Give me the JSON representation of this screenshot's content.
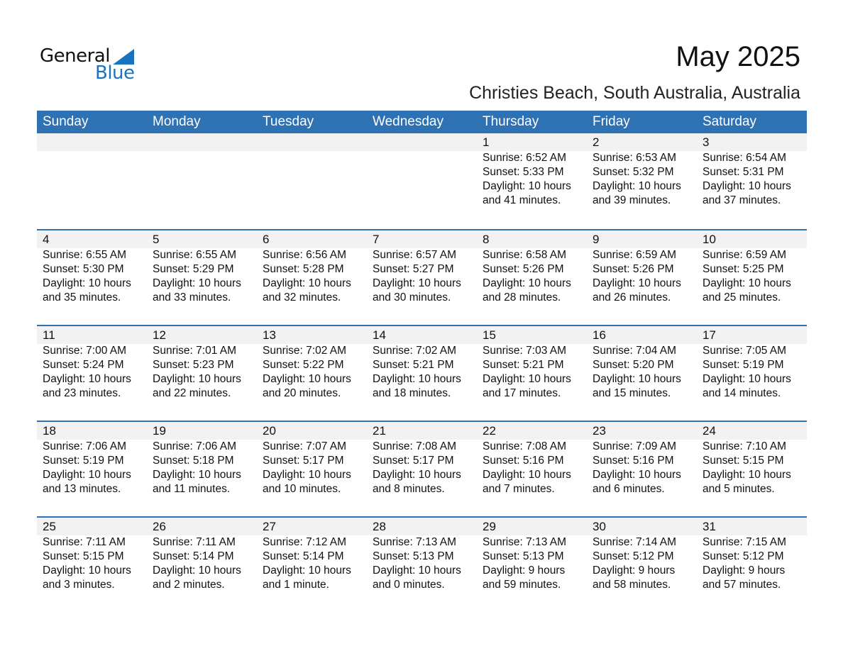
{
  "logo": {
    "text1": "General",
    "text2": "Blue"
  },
  "title": "May 2025",
  "location": "Christies Beach, South Australia, Australia",
  "colors": {
    "header": "#2e72b4",
    "band": "#f2f2f2",
    "logo_blue": "#1a73c0"
  },
  "weekdays": [
    "Sunday",
    "Monday",
    "Tuesday",
    "Wednesday",
    "Thursday",
    "Friday",
    "Saturday"
  ],
  "first_weekday": 4,
  "days": [
    {
      "day": "1",
      "sunrise": "Sunrise: 6:52 AM",
      "sunset": "Sunset: 5:33 PM",
      "daylight": "Daylight: 10 hours",
      "minutes": "and 41 minutes."
    },
    {
      "day": "2",
      "sunrise": "Sunrise: 6:53 AM",
      "sunset": "Sunset: 5:32 PM",
      "daylight": "Daylight: 10 hours",
      "minutes": "and 39 minutes."
    },
    {
      "day": "3",
      "sunrise": "Sunrise: 6:54 AM",
      "sunset": "Sunset: 5:31 PM",
      "daylight": "Daylight: 10 hours",
      "minutes": "and 37 minutes."
    },
    {
      "day": "4",
      "sunrise": "Sunrise: 6:55 AM",
      "sunset": "Sunset: 5:30 PM",
      "daylight": "Daylight: 10 hours",
      "minutes": "and 35 minutes."
    },
    {
      "day": "5",
      "sunrise": "Sunrise: 6:55 AM",
      "sunset": "Sunset: 5:29 PM",
      "daylight": "Daylight: 10 hours",
      "minutes": "and 33 minutes."
    },
    {
      "day": "6",
      "sunrise": "Sunrise: 6:56 AM",
      "sunset": "Sunset: 5:28 PM",
      "daylight": "Daylight: 10 hours",
      "minutes": "and 32 minutes."
    },
    {
      "day": "7",
      "sunrise": "Sunrise: 6:57 AM",
      "sunset": "Sunset: 5:27 PM",
      "daylight": "Daylight: 10 hours",
      "minutes": "and 30 minutes."
    },
    {
      "day": "8",
      "sunrise": "Sunrise: 6:58 AM",
      "sunset": "Sunset: 5:26 PM",
      "daylight": "Daylight: 10 hours",
      "minutes": "and 28 minutes."
    },
    {
      "day": "9",
      "sunrise": "Sunrise: 6:59 AM",
      "sunset": "Sunset: 5:26 PM",
      "daylight": "Daylight: 10 hours",
      "minutes": "and 26 minutes."
    },
    {
      "day": "10",
      "sunrise": "Sunrise: 6:59 AM",
      "sunset": "Sunset: 5:25 PM",
      "daylight": "Daylight: 10 hours",
      "minutes": "and 25 minutes."
    },
    {
      "day": "11",
      "sunrise": "Sunrise: 7:00 AM",
      "sunset": "Sunset: 5:24 PM",
      "daylight": "Daylight: 10 hours",
      "minutes": "and 23 minutes."
    },
    {
      "day": "12",
      "sunrise": "Sunrise: 7:01 AM",
      "sunset": "Sunset: 5:23 PM",
      "daylight": "Daylight: 10 hours",
      "minutes": "and 22 minutes."
    },
    {
      "day": "13",
      "sunrise": "Sunrise: 7:02 AM",
      "sunset": "Sunset: 5:22 PM",
      "daylight": "Daylight: 10 hours",
      "minutes": "and 20 minutes."
    },
    {
      "day": "14",
      "sunrise": "Sunrise: 7:02 AM",
      "sunset": "Sunset: 5:21 PM",
      "daylight": "Daylight: 10 hours",
      "minutes": "and 18 minutes."
    },
    {
      "day": "15",
      "sunrise": "Sunrise: 7:03 AM",
      "sunset": "Sunset: 5:21 PM",
      "daylight": "Daylight: 10 hours",
      "minutes": "and 17 minutes."
    },
    {
      "day": "16",
      "sunrise": "Sunrise: 7:04 AM",
      "sunset": "Sunset: 5:20 PM",
      "daylight": "Daylight: 10 hours",
      "minutes": "and 15 minutes."
    },
    {
      "day": "17",
      "sunrise": "Sunrise: 7:05 AM",
      "sunset": "Sunset: 5:19 PM",
      "daylight": "Daylight: 10 hours",
      "minutes": "and 14 minutes."
    },
    {
      "day": "18",
      "sunrise": "Sunrise: 7:06 AM",
      "sunset": "Sunset: 5:19 PM",
      "daylight": "Daylight: 10 hours",
      "minutes": "and 13 minutes."
    },
    {
      "day": "19",
      "sunrise": "Sunrise: 7:06 AM",
      "sunset": "Sunset: 5:18 PM",
      "daylight": "Daylight: 10 hours",
      "minutes": "and 11 minutes."
    },
    {
      "day": "20",
      "sunrise": "Sunrise: 7:07 AM",
      "sunset": "Sunset: 5:17 PM",
      "daylight": "Daylight: 10 hours",
      "minutes": "and 10 minutes."
    },
    {
      "day": "21",
      "sunrise": "Sunrise: 7:08 AM",
      "sunset": "Sunset: 5:17 PM",
      "daylight": "Daylight: 10 hours",
      "minutes": "and 8 minutes."
    },
    {
      "day": "22",
      "sunrise": "Sunrise: 7:08 AM",
      "sunset": "Sunset: 5:16 PM",
      "daylight": "Daylight: 10 hours",
      "minutes": "and 7 minutes."
    },
    {
      "day": "23",
      "sunrise": "Sunrise: 7:09 AM",
      "sunset": "Sunset: 5:16 PM",
      "daylight": "Daylight: 10 hours",
      "minutes": "and 6 minutes."
    },
    {
      "day": "24",
      "sunrise": "Sunrise: 7:10 AM",
      "sunset": "Sunset: 5:15 PM",
      "daylight": "Daylight: 10 hours",
      "minutes": "and 5 minutes."
    },
    {
      "day": "25",
      "sunrise": "Sunrise: 7:11 AM",
      "sunset": "Sunset: 5:15 PM",
      "daylight": "Daylight: 10 hours",
      "minutes": "and 3 minutes."
    },
    {
      "day": "26",
      "sunrise": "Sunrise: 7:11 AM",
      "sunset": "Sunset: 5:14 PM",
      "daylight": "Daylight: 10 hours",
      "minutes": "and 2 minutes."
    },
    {
      "day": "27",
      "sunrise": "Sunrise: 7:12 AM",
      "sunset": "Sunset: 5:14 PM",
      "daylight": "Daylight: 10 hours",
      "minutes": "and 1 minute."
    },
    {
      "day": "28",
      "sunrise": "Sunrise: 7:13 AM",
      "sunset": "Sunset: 5:13 PM",
      "daylight": "Daylight: 10 hours",
      "minutes": "and 0 minutes."
    },
    {
      "day": "29",
      "sunrise": "Sunrise: 7:13 AM",
      "sunset": "Sunset: 5:13 PM",
      "daylight": "Daylight: 9 hours",
      "minutes": "and 59 minutes."
    },
    {
      "day": "30",
      "sunrise": "Sunrise: 7:14 AM",
      "sunset": "Sunset: 5:12 PM",
      "daylight": "Daylight: 9 hours",
      "minutes": "and 58 minutes."
    },
    {
      "day": "31",
      "sunrise": "Sunrise: 7:15 AM",
      "sunset": "Sunset: 5:12 PM",
      "daylight": "Daylight: 9 hours",
      "minutes": "and 57 minutes."
    }
  ]
}
